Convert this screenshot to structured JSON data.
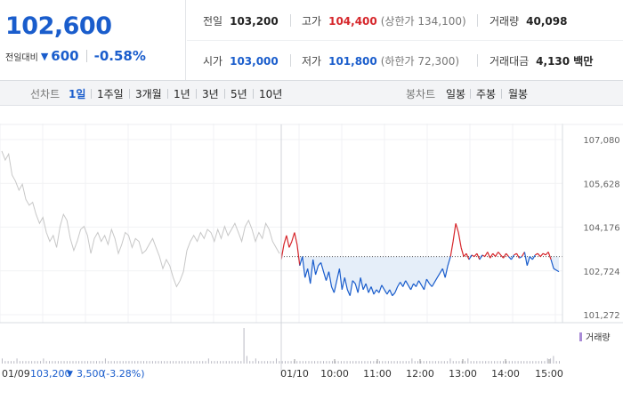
{
  "quote": {
    "price": "102,600",
    "change_label": "전일대비",
    "change_direction_icon": "down-triangle-icon",
    "change_value": "600",
    "change_percent": "-0.58%"
  },
  "stats": {
    "prev_close": {
      "label": "전일",
      "value": "103,200"
    },
    "high": {
      "label": "고가",
      "value": "104,400",
      "sub": "(상한가 134,100)"
    },
    "volume": {
      "label": "거래량",
      "value": "40,098"
    },
    "open": {
      "label": "시가",
      "value": "103,000"
    },
    "low": {
      "label": "저가",
      "value": "101,800",
      "sub": "(하한가 72,300)"
    },
    "amount": {
      "label": "거래대금",
      "value": "4,130 백만"
    }
  },
  "line_tabs": {
    "title": "선차트",
    "items": [
      "1일",
      "1주일",
      "3개월",
      "1년",
      "3년",
      "5년",
      "10년"
    ],
    "active": "1일"
  },
  "candle_tabs": {
    "title": "봉차트",
    "items": [
      "일봉",
      "주봉",
      "월봉"
    ]
  },
  "colors": {
    "up": "#d6262b",
    "down": "#1a5dcc",
    "prev_day": "#c7c7c7",
    "fill": "#e5eef9"
  },
  "chart_data": {
    "type": "line",
    "y_ticks": [
      "107,080",
      "105,628",
      "104,176",
      "102,724",
      "101,272"
    ],
    "ylim": [
      101272,
      107080
    ],
    "x_ticks": [
      "01/10",
      "10:00",
      "11:00",
      "12:00",
      "13:00",
      "14:00",
      "15:00"
    ],
    "baseline": 103200,
    "prev_day": {
      "label": "01/09",
      "close": "103,200",
      "change_icon": "down-triangle-icon",
      "change": "3,500",
      "change_pct": "(-3.28%)",
      "values": [
        106700,
        106400,
        106600,
        105900,
        105700,
        105400,
        105600,
        105100,
        104900,
        105000,
        104600,
        104300,
        104500,
        104000,
        103700,
        103900,
        103500,
        104200,
        104600,
        104400,
        103800,
        103400,
        103700,
        104100,
        104200,
        103900,
        103300,
        103800,
        104000,
        103700,
        103900,
        103600,
        104100,
        103800,
        103300,
        103600,
        104000,
        103900,
        103500,
        103800,
        103700,
        103300,
        103400,
        103600,
        103800,
        103500,
        103200,
        102800,
        103100,
        102900,
        102500,
        102200,
        102400,
        102700,
        103400,
        103700,
        103900,
        103700,
        104000,
        103800,
        104100,
        104000,
        103700,
        104100,
        103800,
        104200,
        103900,
        104100,
        104300,
        104000,
        103700,
        104200,
        104400,
        104100,
        103700,
        104000,
        103800,
        104300,
        104100,
        103700,
        103500,
        103300
      ]
    },
    "today": {
      "label": "01/10",
      "values": [
        103100,
        103600,
        103900,
        103500,
        103700,
        104000,
        103600,
        102900,
        103200,
        102500,
        102800,
        102300,
        103100,
        102600,
        102900,
        103000,
        102700,
        102400,
        102700,
        102200,
        102000,
        102400,
        102800,
        102100,
        102500,
        102100,
        101900,
        102400,
        102300,
        102000,
        102500,
        102100,
        102300,
        102000,
        102200,
        101950,
        102100,
        102000,
        102250,
        102100,
        101950,
        102100,
        101900,
        102000,
        102200,
        102350,
        102200,
        102400,
        102250,
        102100,
        102300,
        102200,
        102400,
        102250,
        102100,
        102450,
        102300,
        102200,
        102350,
        102500,
        102650,
        102800,
        102500,
        102900,
        103200,
        103700,
        104300,
        104000,
        103500,
        103200,
        103300,
        103100,
        103250,
        103200,
        103300,
        103100,
        103250,
        103200,
        103350,
        103150,
        103300,
        103200,
        103350,
        103250,
        103150,
        103300,
        103200,
        103100,
        103250,
        103300,
        103150,
        103200,
        103350,
        102900,
        103200,
        103100,
        103250,
        103300,
        103200,
        103300,
        103250,
        103350,
        103100,
        102800,
        102750,
        102700
      ]
    },
    "volume_legend": "거래량",
    "volume": [
      2,
      1,
      1,
      1,
      1,
      2,
      1,
      1,
      1,
      1,
      1,
      1,
      1,
      1,
      2,
      1,
      1,
      1,
      1,
      1,
      1,
      1,
      1,
      1,
      1,
      1,
      1,
      1,
      1,
      1,
      1,
      1,
      1,
      1,
      1,
      2,
      1,
      1,
      1,
      1,
      1,
      1,
      1,
      1,
      1,
      1,
      1,
      1,
      1,
      1,
      1,
      1,
      1,
      1,
      1,
      1,
      1,
      1,
      1,
      1,
      1,
      1,
      1,
      1,
      1,
      1,
      1,
      1,
      1,
      1,
      2,
      1,
      1,
      1,
      1,
      1,
      1,
      1,
      1,
      1,
      1,
      1,
      14,
      3,
      1,
      1,
      2,
      1,
      1,
      1,
      1,
      1,
      1,
      2,
      1,
      1,
      1,
      1,
      1,
      1,
      1,
      1,
      1,
      1,
      1,
      1,
      1,
      1,
      1,
      1,
      1,
      1,
      1,
      1,
      1,
      1,
      1,
      1,
      1,
      1,
      1,
      1,
      1,
      1,
      1,
      1,
      1,
      1,
      1,
      1,
      1,
      1,
      1,
      1,
      1,
      1,
      1,
      1,
      1,
      2,
      1,
      1,
      1,
      1,
      1,
      1,
      1,
      1,
      1,
      1,
      1,
      1,
      2,
      1,
      1,
      1,
      1,
      1,
      2,
      1,
      1,
      1,
      1,
      1,
      1,
      1,
      1,
      1,
      1,
      1,
      1,
      1,
      1,
      1,
      1,
      1,
      1,
      1,
      1,
      1,
      1,
      1,
      1,
      1,
      1,
      2,
      2,
      3,
      1,
      1
    ]
  }
}
